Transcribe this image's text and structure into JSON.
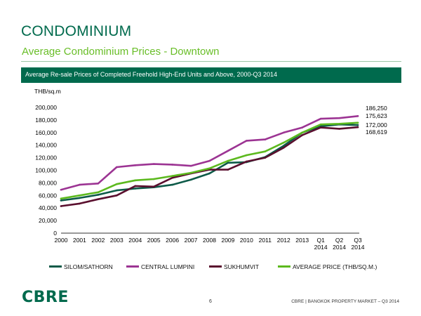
{
  "header": {
    "title": "CONDOMINIUM",
    "subtitle": "Average Condominium Prices - Downtown",
    "banner": "Average Re-sale Prices of Completed Freehold High-End Units and Above, 2000-Q3 2014"
  },
  "colors": {
    "brand_green": "#006a4d",
    "light_green": "#69be28",
    "silom": "#0d5a48",
    "lumpini": "#9c3493",
    "sukhumvit": "#5a0f2e",
    "average": "#5cb91e"
  },
  "chart_data": {
    "type": "line",
    "title": "Average Re-sale Prices of Completed Freehold High-End Units and Above, 2000-Q3 2014",
    "ylabel": "THB/sq.m",
    "xlabel": "",
    "ylim": [
      0,
      200000
    ],
    "yticks": [
      0,
      20000,
      40000,
      60000,
      80000,
      100000,
      120000,
      140000,
      160000,
      180000,
      200000
    ],
    "ytick_labels": [
      "0",
      "20,000",
      "40,000",
      "60,000",
      "80,000",
      "100,000",
      "120,000",
      "140,000",
      "160,000",
      "180,000",
      "200,000"
    ],
    "categories": [
      [
        "2000"
      ],
      [
        "2001"
      ],
      [
        "2002"
      ],
      [
        "2003"
      ],
      [
        "2004"
      ],
      [
        "2005"
      ],
      [
        "2006"
      ],
      [
        "2007"
      ],
      [
        "2008"
      ],
      [
        "2009"
      ],
      [
        "2010"
      ],
      [
        "2011"
      ],
      [
        "2012"
      ],
      [
        "2013"
      ],
      [
        "Q1",
        "2014"
      ],
      [
        "Q2",
        "2014"
      ],
      [
        "Q3",
        "2014"
      ]
    ],
    "grid": false,
    "legend_position": "bottom",
    "series": [
      {
        "name": "SILOM/SATHORN",
        "color": "#0d5a48",
        "values": [
          52000,
          56000,
          61000,
          68000,
          71000,
          73000,
          77000,
          85000,
          95000,
          112000,
          113000,
          121000,
          139000,
          160000,
          170000,
          173000,
          172000
        ]
      },
      {
        "name": "CENTRAL LUMPINI",
        "color": "#9c3493",
        "values": [
          69000,
          77000,
          79000,
          105000,
          108000,
          110000,
          109000,
          107000,
          115000,
          131000,
          147000,
          149000,
          160000,
          168000,
          182000,
          183000,
          186250
        ]
      },
      {
        "name": "SUKHUMVIT",
        "color": "#5a0f2e",
        "values": [
          43000,
          47000,
          54000,
          60000,
          75000,
          74000,
          88000,
          95000,
          101000,
          101000,
          114000,
          120000,
          136000,
          156000,
          168000,
          166000,
          168619
        ]
      },
      {
        "name": "AVERAGE PRICE (THB/SQ.M.)",
        "color": "#5cb91e",
        "values": [
          55000,
          60000,
          65000,
          78000,
          84000,
          86000,
          91000,
          96000,
          103000,
          115000,
          124000,
          130000,
          144000,
          160000,
          173000,
          174000,
          175623
        ]
      }
    ],
    "end_labels": [
      "186,250",
      "175,623",
      "172,000",
      "168,619"
    ]
  },
  "footer": {
    "logo": "CBRE",
    "page": "6",
    "text": "CBRE  |  BANGKOK PROPERTY MARKET – Q3 2014"
  }
}
